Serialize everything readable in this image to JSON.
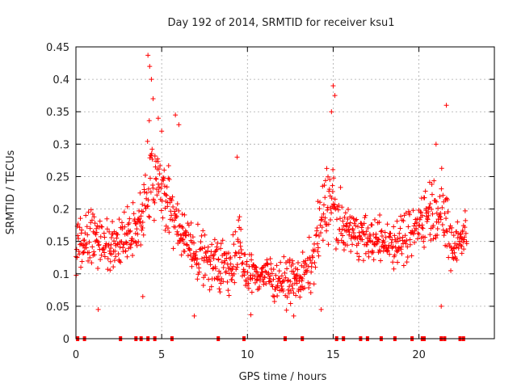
{
  "chart_data": {
    "type": "scatter",
    "title": "Day 192 of 2014, SRMTID for receiver ksu1",
    "xlabel": "GPS time / hours",
    "ylabel": "SRMTID / TECUs",
    "xlim": [
      0,
      24.4
    ],
    "ylim": [
      0,
      0.45
    ],
    "xticks": [
      0,
      5,
      10,
      15,
      20
    ],
    "xtick_labels": [
      "0",
      "5",
      "10",
      "15",
      "20"
    ],
    "yticks": [
      0,
      0.05,
      0.1,
      0.15,
      0.2,
      0.25,
      0.3,
      0.35,
      0.4,
      0.45
    ],
    "ytick_labels": [
      "0",
      "0.05",
      "0.1",
      "0.15",
      "0.2",
      "0.25",
      "0.3",
      "0.35",
      "0.4",
      "0.45"
    ],
    "grid": true,
    "marker": "+",
    "color": "#ff0000",
    "trend": {
      "x": [
        0.0,
        1.0,
        2.0,
        3.0,
        3.8,
        4.3,
        4.8,
        5.5,
        6.3,
        7.0,
        8.0,
        9.0,
        9.5,
        10.0,
        11.0,
        12.0,
        13.0,
        13.7,
        14.3,
        14.8,
        15.5,
        16.5,
        17.5,
        18.5,
        19.5,
        20.3,
        21.0,
        21.7,
        22.0,
        22.8
      ],
      "center": [
        0.14,
        0.16,
        0.14,
        0.16,
        0.18,
        0.25,
        0.24,
        0.2,
        0.15,
        0.13,
        0.12,
        0.11,
        0.14,
        0.1,
        0.1,
        0.09,
        0.09,
        0.11,
        0.18,
        0.22,
        0.17,
        0.16,
        0.15,
        0.15,
        0.16,
        0.19,
        0.21,
        0.17,
        0.14,
        0.17
      ],
      "spread": [
        0.05,
        0.05,
        0.05,
        0.05,
        0.06,
        0.09,
        0.08,
        0.07,
        0.05,
        0.05,
        0.05,
        0.05,
        0.06,
        0.04,
        0.04,
        0.04,
        0.04,
        0.05,
        0.07,
        0.08,
        0.05,
        0.04,
        0.04,
        0.05,
        0.05,
        0.06,
        0.07,
        0.07,
        0.05,
        0.04
      ]
    },
    "outliers": [
      {
        "x": 4.2,
        "y": 0.437
      },
      {
        "x": 4.3,
        "y": 0.42
      },
      {
        "x": 4.4,
        "y": 0.4
      },
      {
        "x": 4.5,
        "y": 0.37
      },
      {
        "x": 4.8,
        "y": 0.34
      },
      {
        "x": 5.0,
        "y": 0.32
      },
      {
        "x": 5.8,
        "y": 0.345
      },
      {
        "x": 6.0,
        "y": 0.33
      },
      {
        "x": 9.4,
        "y": 0.28
      },
      {
        "x": 15.0,
        "y": 0.39
      },
      {
        "x": 15.1,
        "y": 0.375
      },
      {
        "x": 14.9,
        "y": 0.35
      },
      {
        "x": 21.6,
        "y": 0.36
      },
      {
        "x": 21.0,
        "y": 0.3
      },
      {
        "x": 1.3,
        "y": 0.045
      },
      {
        "x": 3.9,
        "y": 0.065
      },
      {
        "x": 6.9,
        "y": 0.035
      },
      {
        "x": 10.2,
        "y": 0.037
      },
      {
        "x": 12.7,
        "y": 0.035
      },
      {
        "x": 21.3,
        "y": 0.05
      },
      {
        "x": 14.3,
        "y": 0.045
      }
    ],
    "zero_markers": [
      0.1,
      0.5,
      2.6,
      3.5,
      3.8,
      4.2,
      4.6,
      5.6,
      8.3,
      9.8,
      12.2,
      13.2,
      15.2,
      15.6,
      16.6,
      17.0,
      17.8,
      18.6,
      19.6,
      20.2,
      20.3,
      21.3,
      21.5,
      22.4,
      22.6
    ]
  }
}
